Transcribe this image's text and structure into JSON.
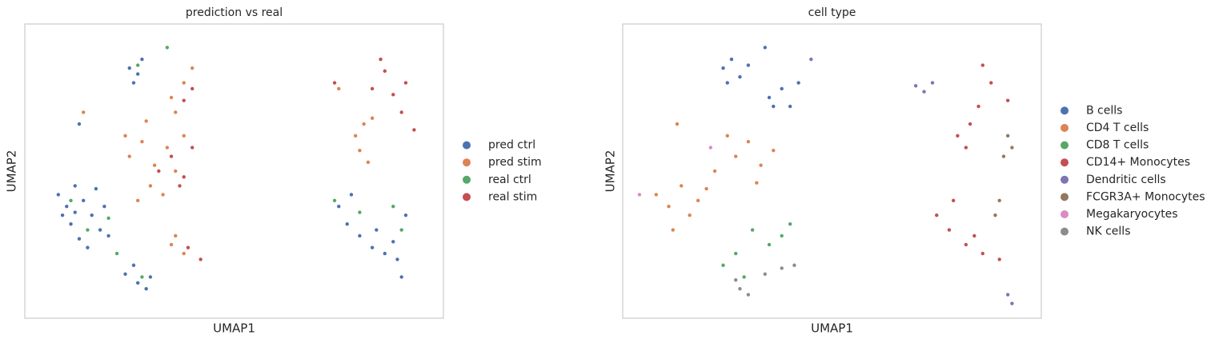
{
  "chart_data": [
    {
      "type": "scatter",
      "title": "prediction vs real",
      "xlabel": "UMAP1",
      "ylabel": "UMAP2",
      "xlim": [
        0,
        100
      ],
      "ylim": [
        0,
        100
      ],
      "legend": "right",
      "series": [
        {
          "name": "pred ctrl",
          "color": "#4c72b0",
          "x": [
            8,
            10,
            12,
            14,
            16,
            18,
            11,
            13,
            15,
            19,
            17,
            9,
            20,
            12,
            24,
            27,
            29,
            26,
            30,
            25,
            27,
            28,
            26,
            13,
            75,
            77,
            80,
            83,
            86,
            89,
            91,
            78,
            84,
            88,
            90
          ],
          "values": [
            42,
            38,
            45,
            40,
            35,
            30,
            32,
            27,
            24,
            38,
            44,
            35,
            28,
            36,
            15,
            12,
            10,
            18,
            14,
            85,
            83,
            88,
            80,
            66,
            38,
            32,
            28,
            24,
            22,
            20,
            35,
            42,
            30,
            26,
            14
          ]
        },
        {
          "name": "pred stim",
          "color": "#dd8452",
          "x": [
            25,
            28,
            31,
            34,
            36,
            30,
            27,
            33,
            38,
            24,
            29,
            35,
            38,
            36,
            35,
            38,
            40,
            36,
            79,
            81,
            80,
            82,
            83,
            14,
            75
          ],
          "values": [
            55,
            60,
            52,
            58,
            50,
            45,
            40,
            42,
            62,
            62,
            67,
            25,
            22,
            28,
            75,
            80,
            85,
            70,
            62,
            66,
            57,
            53,
            68,
            70,
            78
          ]
        },
        {
          "name": "real ctrl",
          "color": "#55a868",
          "x": [
            11,
            15,
            20,
            28,
            27,
            74,
            80,
            90,
            22,
            88,
            34
          ],
          "values": [
            40,
            30,
            34,
            14,
            86,
            40,
            36,
            30,
            22,
            38,
            92
          ]
        },
        {
          "name": "real stim",
          "color": "#c44e52",
          "x": [
            32,
            35,
            38,
            40,
            37,
            39,
            42,
            40,
            38,
            83,
            86,
            88,
            90,
            93,
            85,
            91,
            74
          ],
          "values": [
            50,
            55,
            48,
            58,
            45,
            24,
            20,
            78,
            74,
            78,
            84,
            76,
            70,
            64,
            88,
            80,
            80
          ]
        }
      ]
    },
    {
      "type": "scatter",
      "title": "cell type",
      "xlabel": "UMAP1",
      "ylabel": "UMAP2",
      "xlim": [
        0,
        100
      ],
      "ylim": [
        0,
        100
      ],
      "legend": "right",
      "series": [
        {
          "name": "B cells",
          "color": "#4c72b0",
          "x": [
            24,
            26,
            28,
            30,
            25,
            35,
            38,
            40,
            36,
            42,
            34
          ],
          "values": [
            85,
            88,
            82,
            86,
            80,
            75,
            78,
            72,
            72,
            80,
            92
          ]
        },
        {
          "name": "CD4 T cells",
          "color": "#dd8452",
          "x": [
            8,
            11,
            14,
            16,
            12,
            18,
            22,
            27,
            30,
            33,
            36,
            25,
            20,
            32,
            13
          ],
          "values": [
            42,
            38,
            45,
            35,
            30,
            40,
            50,
            55,
            60,
            52,
            57,
            62,
            44,
            46,
            66
          ]
        },
        {
          "name": "CD8 T cells",
          "color": "#55a868",
          "x": [
            24,
            27,
            29,
            35,
            38,
            40,
            31
          ],
          "values": [
            18,
            22,
            14,
            25,
            28,
            32,
            30
          ]
        },
        {
          "name": "CD14+ Monocytes",
          "color": "#c44e52",
          "x": [
            75,
            78,
            82,
            86,
            90,
            79,
            84,
            80,
            83,
            85,
            88,
            86,
            82,
            92
          ],
          "values": [
            35,
            30,
            25,
            22,
            20,
            40,
            28,
            62,
            66,
            72,
            80,
            86,
            58,
            74
          ]
        },
        {
          "name": "Dendritic cells",
          "color": "#8172b3",
          "x": [
            70,
            72,
            74,
            92,
            93,
            45
          ],
          "values": [
            79,
            77,
            80,
            8,
            5,
            88
          ]
        },
        {
          "name": "FCGR3A+ Monocytes",
          "color": "#937860",
          "x": [
            91,
            93,
            90,
            89,
            92
          ],
          "values": [
            55,
            58,
            40,
            35,
            62
          ]
        },
        {
          "name": "Megakaryocytes",
          "color": "#da8bc3",
          "x": [
            4,
            21
          ],
          "values": [
            42,
            58
          ]
        },
        {
          "name": "NK cells",
          "color": "#8c8c8c",
          "x": [
            28,
            30,
            34,
            38,
            41,
            27
          ],
          "values": [
            10,
            8,
            15,
            17,
            18,
            13
          ]
        }
      ]
    }
  ]
}
